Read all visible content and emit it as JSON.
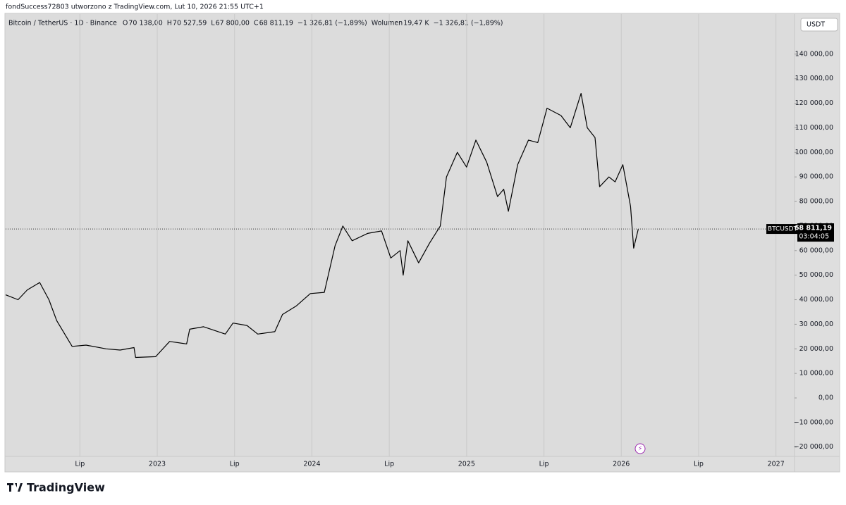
{
  "header": "fondSuccess72803 utworzono z TradingView.com, Lut 10, 2026 21:55 UTC+1",
  "brand": "TradingView",
  "chart_data": {
    "type": "line",
    "symbol": "Bitcoin / TetherUS · 1D · Binance",
    "legend": [
      {
        "key": "O",
        "value": "70 138,00"
      },
      {
        "key": "H",
        "value": "70 527,59"
      },
      {
        "key": "L",
        "value": "67 800,00"
      },
      {
        "key": "C",
        "value": "68 811,19"
      },
      {
        "key": "",
        "value": "−1 326,81 (−1,89%)"
      },
      {
        "key": "Wolumen",
        "value": "19,47 K"
      },
      {
        "key": "",
        "value": "−1 326,81 (−1,89%)"
      }
    ],
    "currency": "USDT",
    "x": [
      2022.02,
      2022.1,
      2022.16,
      2022.24,
      2022.3,
      2022.35,
      2022.45,
      2022.54,
      2022.67,
      2022.76,
      2022.85,
      2022.86,
      2022.99,
      2023.08,
      2023.19,
      2023.21,
      2023.3,
      2023.44,
      2023.49,
      2023.58,
      2023.65,
      2023.76,
      2023.81,
      2023.9,
      2023.99,
      2024.08,
      2024.15,
      2024.2,
      2024.26,
      2024.36,
      2024.45,
      2024.51,
      2024.57,
      2024.59,
      2024.62,
      2024.69,
      2024.76,
      2024.83,
      2024.87,
      2024.94,
      2025.0,
      2025.06,
      2025.13,
      2025.2,
      2025.24,
      2025.27,
      2025.33,
      2025.4,
      2025.46,
      2025.52,
      2025.61,
      2025.67,
      2025.74,
      2025.78,
      2025.83,
      2025.86,
      2025.92,
      2025.96,
      2026.01,
      2026.06,
      2026.08,
      2026.11
    ],
    "series": [
      {
        "name": "BTCUSDT",
        "color": "#000000",
        "values": [
          42000,
          40000,
          44000,
          47000,
          40000,
          31500,
          21000,
          21500,
          20000,
          19500,
          20500,
          16500,
          16800,
          23000,
          22000,
          28000,
          29000,
          26000,
          30500,
          29500,
          26000,
          27000,
          34000,
          37500,
          42500,
          43000,
          62000,
          70000,
          64000,
          67000,
          68000,
          57000,
          60000,
          50000,
          64000,
          55000,
          63000,
          70000,
          90000,
          100000,
          94000,
          105000,
          96000,
          82000,
          85000,
          76000,
          95000,
          105000,
          104000,
          118000,
          115000,
          110000,
          124000,
          110000,
          106000,
          86000,
          90000,
          88000,
          95000,
          78000,
          61000,
          68811.19
        ]
      }
    ],
    "last_price": {
      "value": 68811.19,
      "label": "68 811,19"
    },
    "countdown": "03:04:05",
    "xlim": [
      2022.02,
      2027.12
    ],
    "xticks": [
      {
        "value": 2022.5,
        "label": "Lip"
      },
      2023,
      {
        "value": 2023.5,
        "label": "Lip"
      },
      2024,
      {
        "value": 2024.5,
        "label": "Lip"
      },
      2025,
      {
        "value": 2025.5,
        "label": "Lip"
      },
      2026,
      {
        "value": 2026.5,
        "label": "Lip"
      },
      2027
    ],
    "ylim": [
      -23800,
      156300
    ],
    "yticks": [
      {
        "value": -20000,
        "label": "−20 000,00"
      },
      {
        "value": -10000,
        "label": "−10 000,00"
      },
      {
        "value": 0,
        "label": "0,00"
      },
      {
        "value": 10000,
        "label": "10 000,00"
      },
      {
        "value": 20000,
        "label": "20 000,00"
      },
      {
        "value": 30000,
        "label": "30 000,00"
      },
      {
        "value": 40000,
        "label": "40 000,00"
      },
      {
        "value": 50000,
        "label": "50 000,00"
      },
      {
        "value": 60000,
        "label": "60 000,00"
      },
      {
        "value": 70000,
        "label": "70 000,00"
      },
      {
        "value": 80000,
        "label": "80 000,00"
      },
      {
        "value": 90000,
        "label": "90 000,00"
      },
      {
        "value": 100000,
        "label": "100 000,00"
      },
      {
        "value": 110000,
        "label": "110 000,00"
      },
      {
        "value": 120000,
        "label": "120 000,00"
      },
      {
        "value": 130000,
        "label": "130 000,00"
      },
      {
        "value": 140000,
        "label": "140 000,00"
      }
    ],
    "grid": "x"
  }
}
